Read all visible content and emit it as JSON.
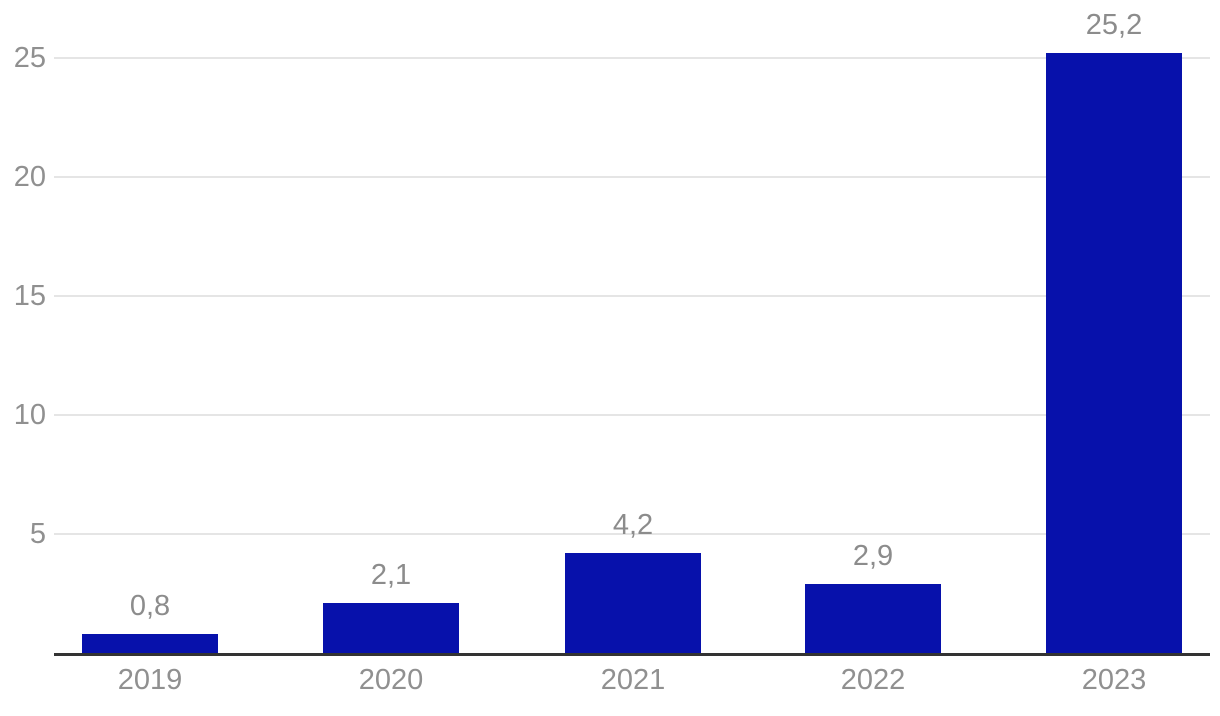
{
  "chart_data": {
    "type": "bar",
    "title": "",
    "categories": [
      "2019",
      "2020",
      "2021",
      "2022",
      "2023"
    ],
    "values": [
      0.8,
      2.1,
      4.2,
      2.9,
      25.2
    ],
    "value_labels": [
      "0,8",
      "2,1",
      "4,2",
      "2,9",
      "25,2"
    ],
    "y_ticks": [
      5,
      10,
      15,
      20,
      25
    ],
    "y_tick_labels": [
      "5",
      "10",
      "15",
      "20",
      "25"
    ],
    "ylim": [
      0,
      27.4
    ],
    "xlabel": "",
    "ylabel": "",
    "grid": true,
    "legend": "none",
    "decimal_separator": ","
  },
  "colors": {
    "background": "#ffffff",
    "bar": "#0711AB",
    "gridline": "#e5e5e5",
    "axis_line": "#333333",
    "tick_label": "#909090",
    "value_label": "#8c8c8c"
  }
}
